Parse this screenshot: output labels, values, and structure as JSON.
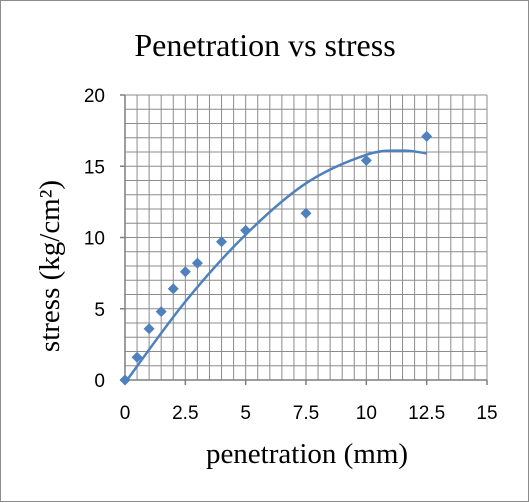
{
  "chart_data": {
    "type": "scatter",
    "title": "Penetration vs stress",
    "xlabel": "penetration (mm)",
    "ylabel": "stress (kg/cm²)",
    "xlim": [
      0,
      15
    ],
    "ylim": [
      0,
      20
    ],
    "x_ticks": [
      "0",
      "2.5",
      "5",
      "7.5",
      "10",
      "12.5",
      "15"
    ],
    "y_ticks": [
      "0",
      "5",
      "10",
      "15",
      "20"
    ],
    "grid": true,
    "legend": "none",
    "marker_color": "#4f81bd",
    "trendline_color": "#4f81bd",
    "points": [
      {
        "x": 0,
        "y": 0
      },
      {
        "x": 0.5,
        "y": 1.6
      },
      {
        "x": 1,
        "y": 3.6
      },
      {
        "x": 1.5,
        "y": 4.8
      },
      {
        "x": 2,
        "y": 6.4
      },
      {
        "x": 2.5,
        "y": 7.6
      },
      {
        "x": 3,
        "y": 8.2
      },
      {
        "x": 4,
        "y": 9.7
      },
      {
        "x": 5,
        "y": 10.5
      },
      {
        "x": 7.5,
        "y": 11.7
      },
      {
        "x": 10,
        "y": 15.4
      },
      {
        "x": 12.5,
        "y": 17.1
      }
    ],
    "trendline": {
      "type": "polynomial",
      "x_range": [
        0,
        12.5
      ],
      "samples": [
        {
          "x": 0,
          "y": -0.2
        },
        {
          "x": 2.5,
          "y": 5.5
        },
        {
          "x": 5,
          "y": 10.2
        },
        {
          "x": 7.5,
          "y": 13.8
        },
        {
          "x": 10,
          "y": 15.8
        },
        {
          "x": 11.5,
          "y": 16.1
        },
        {
          "x": 12.5,
          "y": 15.9
        }
      ]
    }
  }
}
